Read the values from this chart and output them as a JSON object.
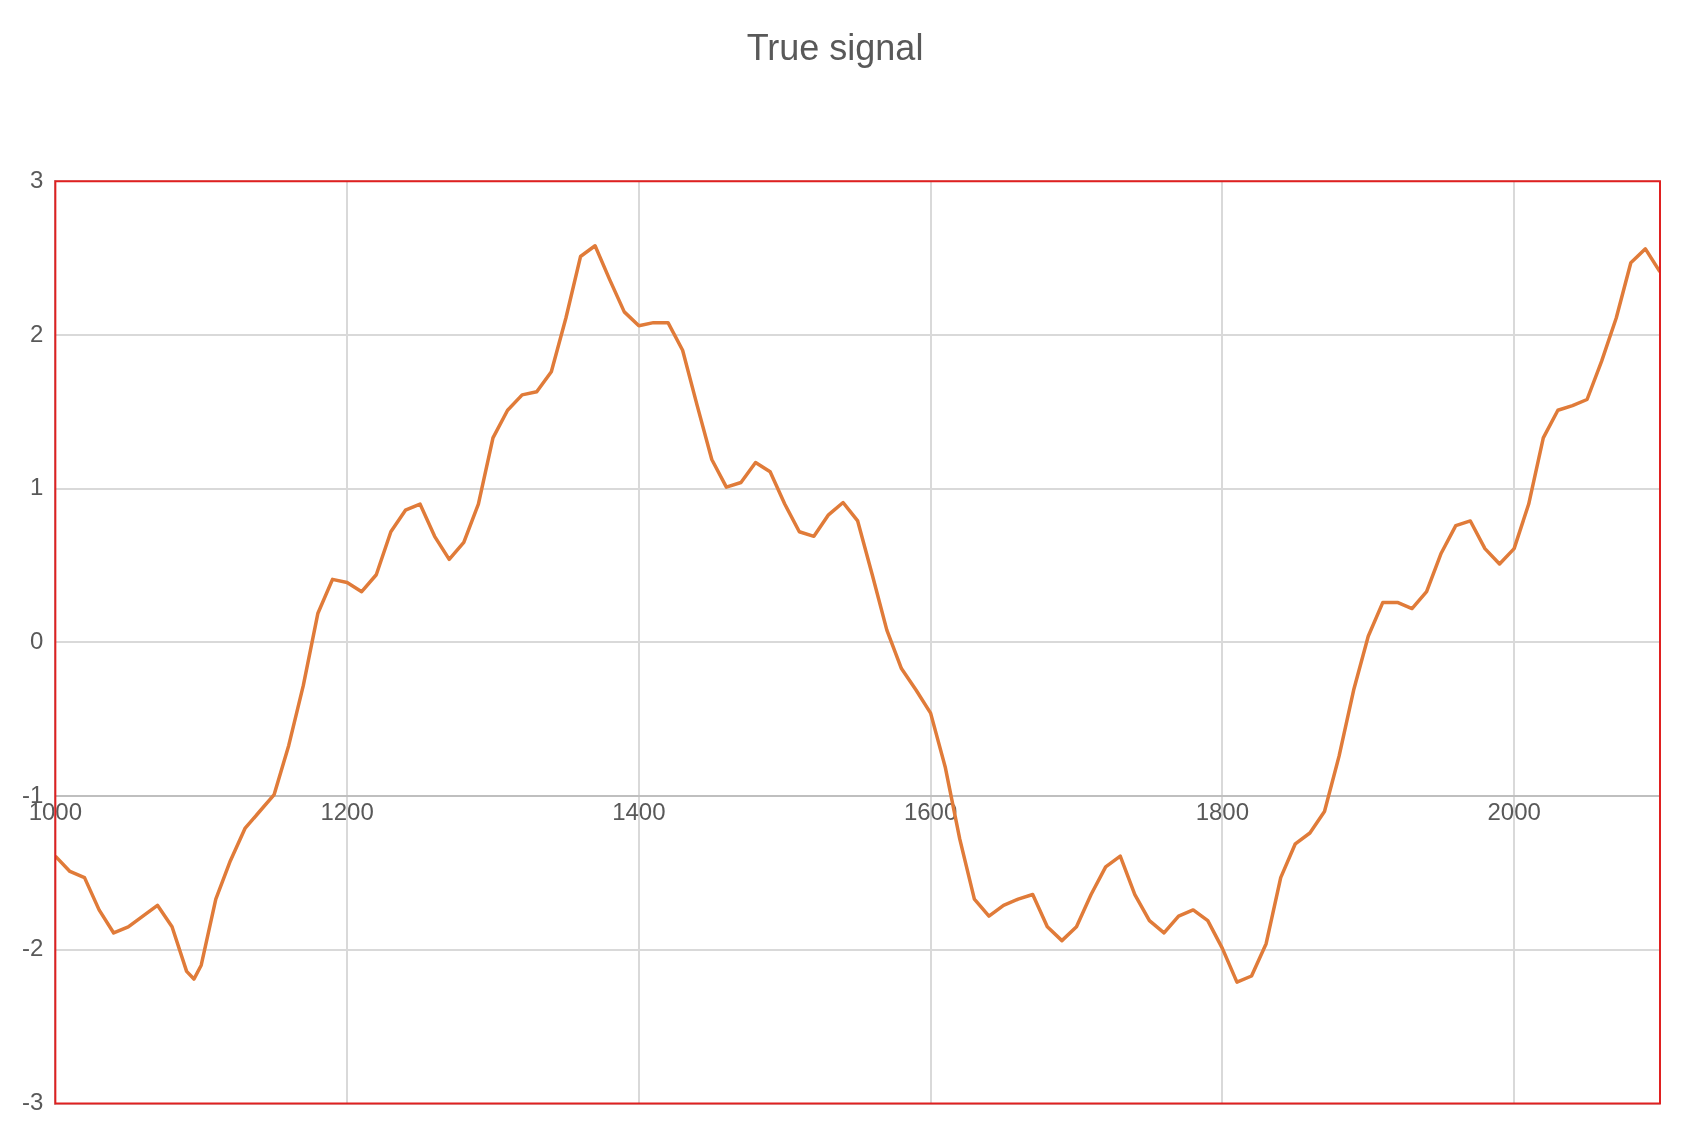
{
  "chart_data": {
    "type": "line",
    "title": "True signal",
    "x": [
      1000,
      1010,
      1020,
      1030,
      1040,
      1050,
      1060,
      1070,
      1080,
      1090,
      1095,
      1100,
      1110,
      1120,
      1130,
      1140,
      1150,
      1160,
      1170,
      1180,
      1190,
      1200,
      1210,
      1220,
      1230,
      1240,
      1250,
      1260,
      1270,
      1280,
      1290,
      1300,
      1310,
      1320,
      1330,
      1340,
      1350,
      1360,
      1370,
      1380,
      1390,
      1400,
      1410,
      1420,
      1430,
      1440,
      1450,
      1460,
      1470,
      1480,
      1490,
      1500,
      1510,
      1520,
      1530,
      1540,
      1550,
      1560,
      1570,
      1580,
      1590,
      1600,
      1610,
      1620,
      1630,
      1640,
      1650,
      1660,
      1670,
      1680,
      1690,
      1700,
      1710,
      1720,
      1730,
      1740,
      1750,
      1760,
      1770,
      1780,
      1790,
      1800,
      1810,
      1820,
      1830,
      1840,
      1850,
      1860,
      1870,
      1880,
      1890,
      1900,
      1910,
      1920,
      1930,
      1940,
      1950,
      1960,
      1970,
      1980,
      1990,
      2000,
      2010,
      2020,
      2030,
      2040,
      2050,
      2060,
      2070,
      2080,
      2090,
      2100
    ],
    "series": [
      {
        "color": "#e07b39",
        "values": [
          -1.39,
          -1.49,
          -1.53,
          -1.74,
          -1.89,
          -1.85,
          -1.78,
          -1.71,
          -1.85,
          -2.14,
          -2.19,
          -2.1,
          -1.67,
          -1.42,
          -1.21,
          -1.1,
          -0.99,
          -0.67,
          -0.28,
          0.19,
          0.41,
          0.39,
          0.33,
          0.44,
          0.72,
          0.86,
          0.9,
          0.69,
          0.54,
          0.65,
          0.9,
          1.33,
          1.51,
          1.61,
          1.63,
          1.76,
          2.11,
          2.51,
          2.58,
          2.36,
          2.15,
          2.06,
          2.08,
          2.08,
          1.9,
          1.54,
          1.19,
          1.01,
          1.04,
          1.17,
          1.11,
          0.9,
          0.72,
          0.69,
          0.83,
          0.91,
          0.79,
          0.44,
          0.08,
          -0.17,
          -0.31,
          -0.46,
          -0.81,
          -1.28,
          -1.67,
          -1.78,
          -1.71,
          -1.67,
          -1.64,
          -1.85,
          -1.94,
          -1.85,
          -1.64,
          -1.46,
          -1.39,
          -1.64,
          -1.81,
          -1.89,
          -1.78,
          -1.74,
          -1.81,
          -1.99,
          -2.21,
          -2.17,
          -1.96,
          -1.53,
          -1.31,
          -1.24,
          -1.1,
          -0.74,
          -0.31,
          0.04,
          0.26,
          0.26,
          0.22,
          0.33,
          0.58,
          0.76,
          0.79,
          0.61,
          0.51,
          0.61,
          0.9,
          1.33,
          1.51,
          1.54,
          1.58,
          1.83,
          2.11,
          2.47,
          2.56,
          2.41
        ]
      }
    ],
    "xlim": [
      1000,
      2100
    ],
    "xticks": [
      1000,
      1200,
      1400,
      1600,
      1800,
      2000
    ],
    "ylim": [
      -3,
      3
    ],
    "yticks": [
      -3,
      -2,
      -1,
      0,
      1,
      2,
      3
    ],
    "grid": true,
    "legend": false,
    "marker": "none",
    "line_style": "solid"
  }
}
